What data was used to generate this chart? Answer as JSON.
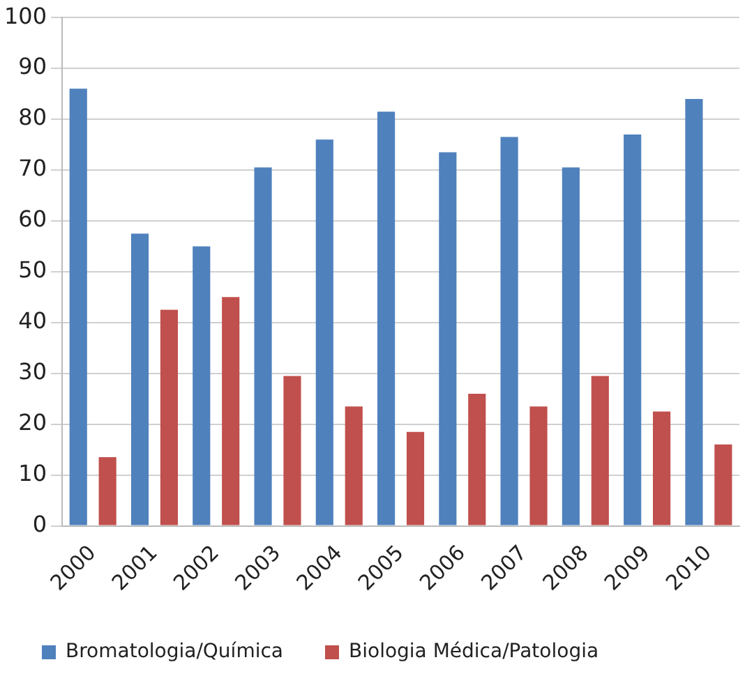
{
  "chart_data": {
    "type": "bar",
    "categories": [
      "2000",
      "2001",
      "2002",
      "2003",
      "2004",
      "2005",
      "2006",
      "2007",
      "2008",
      "2009",
      "2010"
    ],
    "series": [
      {
        "name": "Bromatologia/Química",
        "color": "#4f81bd",
        "values": [
          86,
          57.5,
          55,
          70.5,
          76,
          81.5,
          73.5,
          76.5,
          70.5,
          77,
          84
        ]
      },
      {
        "name": "Biologia Médica/Patologia",
        "color": "#c0504d",
        "values": [
          13.5,
          42.5,
          45,
          29.5,
          23.5,
          18.5,
          26,
          23.5,
          29.5,
          22.5,
          16
        ]
      }
    ],
    "ylim": [
      0,
      100
    ],
    "yticks": [
      0,
      10,
      20,
      30,
      40,
      50,
      60,
      70,
      80,
      90,
      100
    ],
    "grid": "y",
    "legend": "bottom"
  }
}
